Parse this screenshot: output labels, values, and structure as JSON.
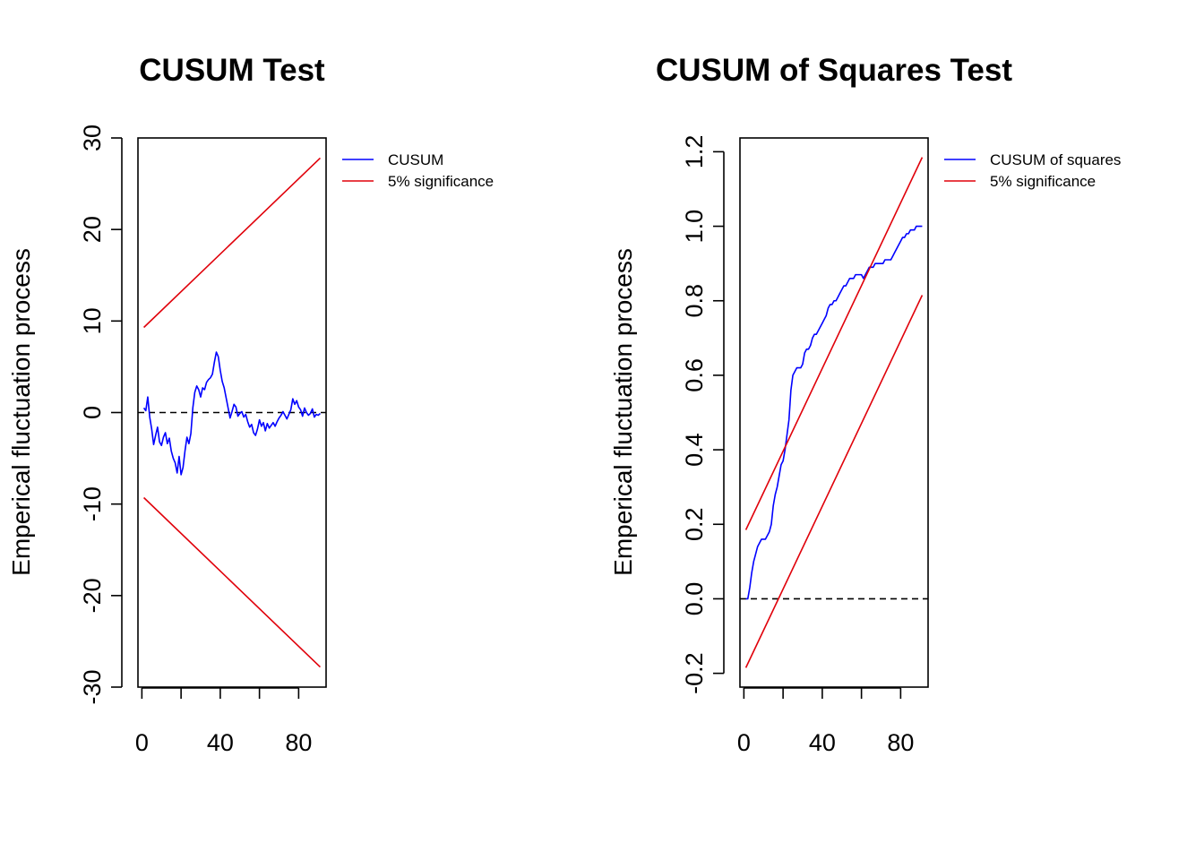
{
  "colors": {
    "cusum": "#0000ff",
    "boundary": "#e0000a",
    "axis": "#000000",
    "zero_line": "#000000"
  },
  "chart_data": [
    {
      "type": "line",
      "title": "CUSUM Test",
      "ylabel": "Emperical fluctuation process",
      "xlabel": "",
      "xlim": [
        -2,
        94
      ],
      "ylim": [
        -30,
        30
      ],
      "x_ticks": [
        0,
        20,
        40,
        60,
        80
      ],
      "x_tick_labels": [
        "0",
        "",
        "40",
        "",
        "80"
      ],
      "y_ticks": [
        -30,
        -20,
        -10,
        0,
        10,
        20,
        30
      ],
      "y_tick_labels": [
        "-30",
        "-20",
        "-10",
        "0",
        "10",
        "20",
        "30"
      ],
      "zero_line": 0,
      "grid": false,
      "legend": {
        "position": "outside-right",
        "entries": [
          "CUSUM",
          "5% significance"
        ]
      },
      "series": [
        {
          "name": "CUSUM",
          "color": "#0000ff",
          "x": [
            1,
            2,
            3,
            4,
            5,
            6,
            7,
            8,
            9,
            10,
            11,
            12,
            13,
            14,
            15,
            16,
            17,
            18,
            19,
            20,
            21,
            22,
            23,
            24,
            25,
            26,
            27,
            28,
            29,
            30,
            31,
            32,
            33,
            34,
            35,
            36,
            37,
            38,
            39,
            40,
            41,
            42,
            43,
            44,
            45,
            46,
            47,
            48,
            49,
            50,
            51,
            52,
            53,
            54,
            55,
            56,
            57,
            58,
            59,
            60,
            61,
            62,
            63,
            64,
            65,
            66,
            67,
            68,
            69,
            70,
            71,
            72,
            73,
            74,
            75,
            76,
            77,
            78,
            79,
            80,
            81,
            82,
            83,
            84,
            85,
            86,
            87,
            88,
            89,
            90,
            91
          ],
          "y": [
            0.5,
            0.2,
            1.7,
            -0.5,
            -1.8,
            -3.5,
            -2.5,
            -1.6,
            -3.2,
            -3.6,
            -2.7,
            -2.2,
            -3.4,
            -2.8,
            -4.2,
            -5.0,
            -5.5,
            -6.6,
            -4.8,
            -6.8,
            -6.0,
            -4.2,
            -2.7,
            -3.4,
            -2.3,
            0.5,
            2.2,
            2.9,
            2.5,
            1.7,
            2.7,
            2.5,
            3.3,
            3.6,
            3.8,
            4.2,
            5.5,
            6.6,
            6.1,
            4.6,
            3.4,
            2.7,
            1.6,
            0.5,
            -0.6,
            0.1,
            0.9,
            0.6,
            -0.4,
            -0.1,
            0.1,
            -0.5,
            -0.2,
            -1.0,
            -1.6,
            -1.3,
            -2.2,
            -2.5,
            -1.8,
            -0.8,
            -1.5,
            -1.1,
            -2.0,
            -1.2,
            -1.7,
            -1.4,
            -1.1,
            -1.5,
            -1.0,
            -0.6,
            -0.3,
            0.1,
            -0.3,
            -0.7,
            -0.2,
            0.3,
            1.5,
            0.9,
            1.3,
            0.6,
            0.3,
            -0.4,
            0.5,
            0.0,
            -0.3,
            -0.1,
            0.4,
            -0.5,
            -0.2,
            -0.3,
            -0.1
          ]
        },
        {
          "name": "5% significance",
          "color": "#e0000a",
          "x": [
            1,
            91
          ],
          "y": [
            9.3,
            27.8
          ]
        },
        {
          "name": "",
          "color": "#e0000a",
          "x": [
            1,
            91
          ],
          "y": [
            -9.3,
            -27.8
          ]
        }
      ]
    },
    {
      "type": "line",
      "title": "CUSUM of Squares Test",
      "ylabel": "Emperical fluctuation process",
      "xlabel": "",
      "xlim": [
        -2,
        94
      ],
      "ylim": [
        -0.237,
        1.237
      ],
      "x_ticks": [
        0,
        20,
        40,
        60,
        80
      ],
      "x_tick_labels": [
        "0",
        "",
        "40",
        "",
        "80"
      ],
      "y_ticks": [
        -0.2,
        0.0,
        0.2,
        0.4,
        0.6,
        0.8,
        1.0,
        1.2
      ],
      "y_tick_labels": [
        "-0.2",
        "0.0",
        "0.2",
        "0.4",
        "0.6",
        "0.8",
        "1.0",
        "1.2"
      ],
      "zero_line": 0,
      "grid": false,
      "legend": {
        "position": "outside-right",
        "entries": [
          "CUSUM of squares",
          "5% significance"
        ]
      },
      "series": [
        {
          "name": "CUSUM of squares",
          "color": "#0000ff",
          "x": [
            1,
            2,
            3,
            4,
            5,
            6,
            7,
            8,
            9,
            10,
            11,
            12,
            13,
            14,
            15,
            16,
            17,
            18,
            19,
            20,
            21,
            22,
            23,
            24,
            25,
            26,
            27,
            28,
            29,
            30,
            31,
            32,
            33,
            34,
            35,
            36,
            37,
            38,
            39,
            40,
            41,
            42,
            43,
            44,
            45,
            46,
            47,
            48,
            49,
            50,
            51,
            52,
            53,
            54,
            55,
            56,
            57,
            58,
            59,
            60,
            61,
            62,
            63,
            64,
            65,
            66,
            67,
            68,
            69,
            70,
            71,
            72,
            73,
            74,
            75,
            76,
            77,
            78,
            79,
            80,
            81,
            82,
            83,
            84,
            85,
            86,
            87,
            88,
            89,
            90,
            91
          ],
          "y": [
            0.0,
            0.0,
            0.03,
            0.07,
            0.1,
            0.12,
            0.14,
            0.15,
            0.16,
            0.16,
            0.16,
            0.17,
            0.18,
            0.2,
            0.25,
            0.28,
            0.3,
            0.33,
            0.36,
            0.37,
            0.4,
            0.44,
            0.48,
            0.56,
            0.6,
            0.61,
            0.62,
            0.62,
            0.62,
            0.63,
            0.66,
            0.67,
            0.67,
            0.68,
            0.7,
            0.71,
            0.71,
            0.72,
            0.73,
            0.74,
            0.75,
            0.76,
            0.78,
            0.79,
            0.79,
            0.8,
            0.8,
            0.81,
            0.82,
            0.83,
            0.84,
            0.84,
            0.85,
            0.86,
            0.86,
            0.86,
            0.87,
            0.87,
            0.87,
            0.87,
            0.86,
            0.87,
            0.88,
            0.89,
            0.89,
            0.89,
            0.9,
            0.9,
            0.9,
            0.9,
            0.9,
            0.91,
            0.91,
            0.91,
            0.91,
            0.92,
            0.93,
            0.94,
            0.95,
            0.96,
            0.97,
            0.97,
            0.98,
            0.98,
            0.99,
            0.99,
            0.99,
            1.0,
            1.0,
            1.0,
            1.0
          ]
        },
        {
          "name": "5% significance",
          "color": "#e0000a",
          "x": [
            1,
            91
          ],
          "y": [
            0.185,
            1.185
          ]
        },
        {
          "name": "",
          "color": "#e0000a",
          "x": [
            1,
            91
          ],
          "y": [
            -0.185,
            0.815
          ]
        }
      ]
    }
  ]
}
